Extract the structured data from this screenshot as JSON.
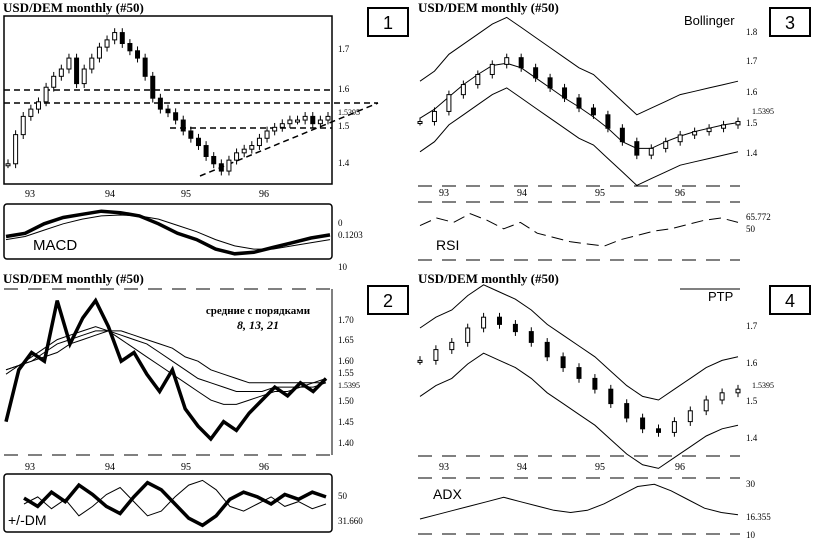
{
  "panels": [
    {
      "title": "USD/DEM   monthly   (#50)",
      "badge": "1",
      "price_ticks": [
        "1.7",
        "1.6",
        "1.5395",
        "1.5",
        "1.4"
      ],
      "x_ticks": [
        "93",
        "94",
        "95",
        "96"
      ],
      "sub_label": "MACD",
      "sub_ticks": [
        "0",
        "0.1203",
        "10"
      ]
    },
    {
      "title": "USD/DEM   monthly   (#50)",
      "badge": "2",
      "note_line1": "средние с порядками",
      "note_line2": "8, 13, 21",
      "price_ticks": [
        "1.70",
        "1.65",
        "1.60",
        "1.55",
        "1.5395",
        "1.50",
        "1.45",
        "1.40"
      ],
      "x_ticks": [
        "93",
        "94",
        "95",
        "96"
      ],
      "sub_label": "+/-DM",
      "sub_ticks": [
        "50",
        "31.660"
      ]
    },
    {
      "title": "USD/DEM   monthly   (#50)",
      "badge": "3",
      "indicator": "Bollinger",
      "price_ticks": [
        "1.8",
        "1.7",
        "1.6",
        "1.5395",
        "1.5",
        "1.4"
      ],
      "x_ticks": [
        "93",
        "94",
        "95",
        "96"
      ],
      "sub_label": "RSI",
      "sub_ticks": [
        "65.772",
        "50"
      ]
    },
    {
      "title": "USD/DEM   monthly   (#50)",
      "badge": "4",
      "indicator": "PTP",
      "price_ticks": [
        "1.7",
        "1.6",
        "1.5395",
        "1.5",
        "1.4"
      ],
      "x_ticks": [
        "93",
        "94",
        "95",
        "96"
      ],
      "sub_label": "ADX",
      "sub_ticks": [
        "30",
        "16.355",
        "10"
      ]
    }
  ],
  "chart_data": [
    {
      "type": "candlestick",
      "title": "USD/DEM   monthly   (#50)",
      "series": [
        {
          "values": [
            1.4,
            1.48,
            1.53,
            1.55,
            1.57,
            1.61,
            1.64,
            1.66,
            1.69,
            1.62,
            1.66,
            1.69,
            1.72,
            1.74,
            1.76,
            1.73,
            1.71,
            1.69,
            1.64,
            1.58,
            1.55,
            1.54,
            1.52,
            1.49,
            1.47,
            1.45,
            1.42,
            1.4,
            1.38,
            1.41,
            1.43,
            1.44,
            1.45,
            1.47,
            1.49,
            1.5,
            1.51,
            1.52,
            1.52,
            1.53,
            1.51,
            1.52,
            1.53
          ]
        }
      ],
      "support_levels": [
        1.6,
        1.5
      ],
      "last": 1.5395,
      "x_ticks": [
        "93",
        "94",
        "95",
        "96"
      ]
    },
    {
      "type": "line",
      "title": "MACD",
      "series": [
        {
          "values": [
            0.2,
            0.3,
            0.6,
            0.8,
            0.9,
            1.0,
            0.95,
            0.85,
            0.6,
            0.3,
            0.1,
            -0.2,
            -0.35,
            -0.3,
            -0.15,
            0.0,
            0.15,
            0.25
          ]
        },
        {
          "values": [
            0.1,
            0.2,
            0.4,
            0.6,
            0.75,
            0.85,
            0.88,
            0.85,
            0.75,
            0.55,
            0.35,
            0.1,
            -0.1,
            -0.2,
            -0.2,
            -0.1,
            0.0,
            0.1
          ]
        }
      ]
    },
    {
      "type": "line",
      "title": "USD/DEM   monthly   (#50)",
      "series": [
        {
          "values": [
            1.44,
            1.56,
            1.6,
            1.58,
            1.72,
            1.62,
            1.68,
            1.72,
            1.66,
            1.58,
            1.6,
            1.55,
            1.51,
            1.56,
            1.47,
            1.43,
            1.4,
            1.44,
            1.42,
            1.46,
            1.49,
            1.52,
            1.5,
            1.53,
            1.51,
            1.54
          ]
        },
        {
          "values": [
            1.55,
            1.57,
            1.59,
            1.61,
            1.63,
            1.64,
            1.65,
            1.66,
            1.65,
            1.63,
            1.61,
            1.59,
            1.57,
            1.55,
            1.53,
            1.51,
            1.49,
            1.48,
            1.48,
            1.49,
            1.5,
            1.51,
            1.51,
            1.52,
            1.52,
            1.53
          ]
        },
        {
          "values": [
            1.56,
            1.57,
            1.58,
            1.6,
            1.62,
            1.63,
            1.64,
            1.65,
            1.65,
            1.64,
            1.63,
            1.62,
            1.6,
            1.58,
            1.56,
            1.54,
            1.53,
            1.52,
            1.51,
            1.51,
            1.51,
            1.52,
            1.52,
            1.52,
            1.53,
            1.53
          ]
        },
        {
          "values": [
            1.56,
            1.57,
            1.58,
            1.59,
            1.6,
            1.62,
            1.63,
            1.64,
            1.65,
            1.65,
            1.64,
            1.63,
            1.62,
            1.61,
            1.59,
            1.58,
            1.56,
            1.55,
            1.54,
            1.53,
            1.53,
            1.53,
            1.53,
            1.53,
            1.53,
            1.54
          ]
        }
      ]
    },
    {
      "type": "line",
      "title": "+/-DM",
      "series": [
        {
          "values": [
            45,
            38,
            50,
            42,
            56,
            48,
            38,
            32,
            46,
            58,
            52,
            40,
            28,
            22,
            30,
            44,
            50,
            46,
            40,
            48,
            44,
            50,
            46
          ]
        },
        {
          "values": [
            40,
            46,
            36,
            44,
            30,
            38,
            48,
            54,
            42,
            30,
            34,
            46,
            56,
            60,
            52,
            38,
            34,
            40,
            46,
            38,
            42,
            36,
            40
          ]
        }
      ]
    },
    {
      "type": "candlestick",
      "title": "USD/DEM   monthly   (#50)",
      "indicator": "Bollinger",
      "series": [
        {
          "values": [
            1.53,
            1.56,
            1.61,
            1.64,
            1.67,
            1.7,
            1.72,
            1.69,
            1.66,
            1.63,
            1.6,
            1.57,
            1.55,
            1.51,
            1.47,
            1.43,
            1.45,
            1.47,
            1.49,
            1.5,
            1.51,
            1.52,
            1.53
          ]
        }
      ],
      "last": 1.5395
    },
    {
      "type": "line",
      "title": "RSI",
      "series": [
        {
          "values": [
            55,
            62,
            58,
            66,
            60,
            52,
            58,
            48,
            44,
            40,
            38,
            36,
            42,
            46,
            50,
            52,
            56,
            60,
            62,
            58
          ]
        }
      ],
      "levels": [
        65.772,
        50
      ]
    },
    {
      "type": "candlestick",
      "title": "USD/DEM   monthly   (#50)",
      "indicator": "PTP",
      "series": [
        {
          "values": [
            1.61,
            1.64,
            1.66,
            1.7,
            1.73,
            1.71,
            1.69,
            1.66,
            1.62,
            1.59,
            1.56,
            1.53,
            1.49,
            1.45,
            1.42,
            1.41,
            1.44,
            1.47,
            1.5,
            1.52,
            1.53
          ]
        }
      ],
      "last": 1.5395
    },
    {
      "type": "line",
      "title": "ADX",
      "series": [
        {
          "values": [
            14,
            16,
            18,
            20,
            22,
            24,
            22,
            20,
            18,
            17,
            18,
            21,
            25,
            29,
            30,
            27,
            23,
            19,
            17,
            16
          ]
        }
      ],
      "levels": [
        30,
        16.355,
        10
      ]
    }
  ]
}
